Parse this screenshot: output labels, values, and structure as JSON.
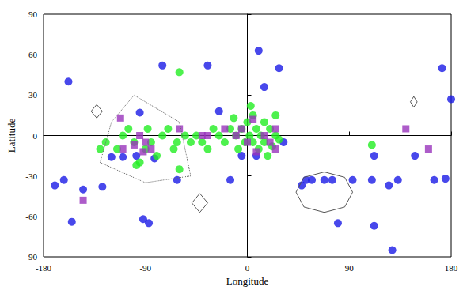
{
  "chart_data": {
    "type": "scatter",
    "x_label": "Longitude",
    "y_label": "Latitude",
    "xlim": [
      -180,
      180
    ],
    "xticks": [
      -180,
      -90,
      0,
      90,
      180
    ],
    "ylim": [
      -90,
      90
    ],
    "yticks": [
      -90,
      -60,
      -30,
      0,
      30,
      60,
      90
    ],
    "grid": false,
    "series": [
      {
        "type": "line",
        "color": "#666666",
        "marker": "none",
        "line_style": "dotted",
        "values": [
          [
            -130,
            -20
          ],
          [
            -120,
            10
          ],
          [
            -100,
            30
          ],
          [
            -80,
            20
          ],
          [
            -60,
            10
          ],
          [
            -50,
            -30
          ],
          [
            -90,
            -35
          ],
          [
            -130,
            -20
          ]
        ]
      },
      {
        "type": "line",
        "color": "#555555",
        "marker": "none",
        "line_style": "solid",
        "values": [
          [
            93,
            -42
          ],
          [
            86,
            -31
          ],
          [
            68,
            -27
          ],
          [
            50,
            -31
          ],
          [
            43,
            -42
          ],
          [
            50,
            -53
          ],
          [
            68,
            -57
          ],
          [
            86,
            -53
          ],
          [
            93,
            -42
          ]
        ]
      },
      {
        "type": "line",
        "color": "#555555",
        "marker": "none",
        "line_style": "solid",
        "values": [
          [
            -128,
            18
          ],
          [
            -133,
            23
          ],
          [
            -138,
            18
          ],
          [
            -133,
            13
          ],
          [
            -128,
            18
          ]
        ]
      },
      {
        "type": "line",
        "color": "#555555",
        "marker": "none",
        "line_style": "solid",
        "values": [
          [
            150,
            25
          ],
          [
            147,
            29
          ],
          [
            144,
            25
          ],
          [
            147,
            21
          ],
          [
            150,
            25
          ]
        ]
      },
      {
        "type": "line",
        "color": "#555555",
        "marker": "none",
        "line_style": "solid",
        "values": [
          [
            -35,
            -50
          ],
          [
            -42,
            -43
          ],
          [
            -49,
            -50
          ],
          [
            -42,
            -57
          ],
          [
            -35,
            -50
          ]
        ]
      },
      {
        "type": "scatter",
        "color": "#1a1ae6",
        "marker": "circle",
        "values": [
          [
            -158,
            40
          ],
          [
            -170,
            -37
          ],
          [
            -162,
            -33
          ],
          [
            -145,
            -40
          ],
          [
            -155,
            -64
          ],
          [
            -128,
            -38
          ],
          [
            -120,
            -16
          ],
          [
            -110,
            -16
          ],
          [
            -98,
            -15
          ],
          [
            -95,
            17
          ],
          [
            -92,
            -62
          ],
          [
            -87,
            -65
          ],
          [
            -82,
            -17
          ],
          [
            -75,
            52
          ],
          [
            -62,
            -33
          ],
          [
            -35,
            52
          ],
          [
            -25,
            18
          ],
          [
            -15,
            -33
          ],
          [
            10,
            63
          ],
          [
            15,
            36
          ],
          [
            28,
            50
          ],
          [
            32,
            -5
          ],
          [
            48,
            -37
          ],
          [
            52,
            -33
          ],
          [
            57,
            -33
          ],
          [
            68,
            -33
          ],
          [
            75,
            -33
          ],
          [
            80,
            -65
          ],
          [
            93,
            -33
          ],
          [
            110,
            -33
          ],
          [
            112,
            -15
          ],
          [
            112,
            -67
          ],
          [
            125,
            -37
          ],
          [
            128,
            -85
          ],
          [
            133,
            -33
          ],
          [
            148,
            -15
          ],
          [
            172,
            50
          ],
          [
            180,
            27
          ],
          [
            175,
            -32
          ],
          [
            165,
            -33
          ],
          [
            8,
            -15
          ],
          [
            -5,
            -15
          ]
        ]
      },
      {
        "type": "scatter",
        "color": "#22ee22",
        "marker": "circle",
        "values": [
          [
            -130,
            -10
          ],
          [
            -125,
            -5
          ],
          [
            -115,
            -10
          ],
          [
            -110,
            0
          ],
          [
            -105,
            5
          ],
          [
            -100,
            -5
          ],
          [
            -95,
            -20
          ],
          [
            -90,
            -10
          ],
          [
            -85,
            -5
          ],
          [
            -80,
            -15
          ],
          [
            -75,
            0
          ],
          [
            -70,
            5
          ],
          [
            -65,
            -10
          ],
          [
            -60,
            -25
          ],
          [
            -55,
            0
          ],
          [
            -50,
            -5
          ],
          [
            -45,
            0
          ],
          [
            -40,
            -5
          ],
          [
            -35,
            -10
          ],
          [
            -30,
            5
          ],
          [
            -25,
            0
          ],
          [
            -20,
            -5
          ],
          [
            -15,
            5
          ],
          [
            -10,
            0
          ],
          [
            -8,
            -10
          ],
          [
            -5,
            5
          ],
          [
            -2,
            -5
          ],
          [
            0,
            10
          ],
          [
            2,
            0
          ],
          [
            5,
            -5
          ],
          [
            5,
            15
          ],
          [
            8,
            5
          ],
          [
            10,
            -10
          ],
          [
            12,
            0
          ],
          [
            15,
            10
          ],
          [
            15,
            -5
          ],
          [
            18,
            -15
          ],
          [
            20,
            5
          ],
          [
            22,
            -8
          ],
          [
            25,
            0
          ],
          [
            25,
            15
          ],
          [
            -60,
            47
          ],
          [
            110,
            -7
          ],
          [
            28,
            -3
          ],
          [
            -88,
            5
          ],
          [
            -98,
            -22
          ],
          [
            -62,
            -5
          ],
          [
            3,
            22
          ],
          [
            -12,
            13
          ]
        ]
      },
      {
        "type": "scatter",
        "color": "#9933bb",
        "marker": "square",
        "values": [
          [
            -145,
            -48
          ],
          [
            -110,
            -10
          ],
          [
            -95,
            0
          ],
          [
            -90,
            -5
          ],
          [
            -92,
            -12
          ],
          [
            -85,
            -10
          ],
          [
            -60,
            5
          ],
          [
            -40,
            0
          ],
          [
            -35,
            0
          ],
          [
            -20,
            5
          ],
          [
            -10,
            0
          ],
          [
            -5,
            5
          ],
          [
            0,
            -5
          ],
          [
            5,
            12
          ],
          [
            8,
            -12
          ],
          [
            15,
            0
          ],
          [
            20,
            -5
          ],
          [
            25,
            -10
          ],
          [
            25,
            5
          ],
          [
            -100,
            -7
          ],
          [
            140,
            5
          ],
          [
            160,
            -10
          ],
          [
            -112,
            13
          ]
        ]
      }
    ]
  }
}
